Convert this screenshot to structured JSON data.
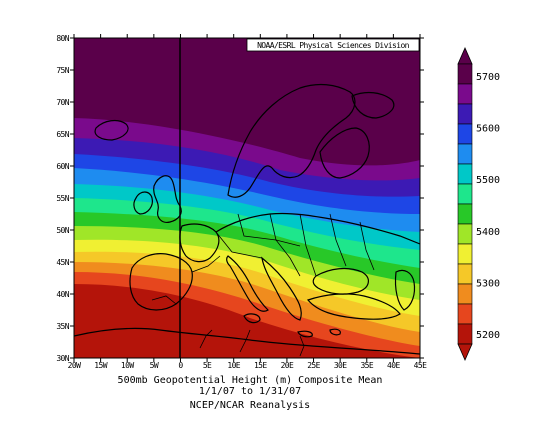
{
  "map": {
    "source_credit": "NOAA/ESRL Physical Sciences Division",
    "caption_line1": "500mb Geopotential Height (m) Composite Mean",
    "caption_line2": "1/1/07  to 1/31/07",
    "caption_line3": "NCEP/NCAR Reanalysis",
    "lat_ticks": [
      "80N",
      "75N",
      "70N",
      "65N",
      "60N",
      "55N",
      "50N",
      "45N",
      "40N",
      "35N",
      "30N"
    ],
    "lon_ticks": [
      "20W",
      "15W",
      "10W",
      "5W",
      "0",
      "5E",
      "10E",
      "15E",
      "20E",
      "25E",
      "30E",
      "35E",
      "40E",
      "45E"
    ]
  },
  "colorbar": {
    "labels": [
      "5700",
      "5600",
      "5500",
      "5400",
      "5300",
      "5200"
    ],
    "colors": [
      "#5a004a",
      "#7a0a8c",
      "#3c1ab4",
      "#1e46e6",
      "#1e8cf0",
      "#00c8c8",
      "#1ee68c",
      "#28c828",
      "#a0e628",
      "#f0f032",
      "#f5c828",
      "#f08c1e",
      "#e6461e",
      "#b4140a"
    ]
  }
}
